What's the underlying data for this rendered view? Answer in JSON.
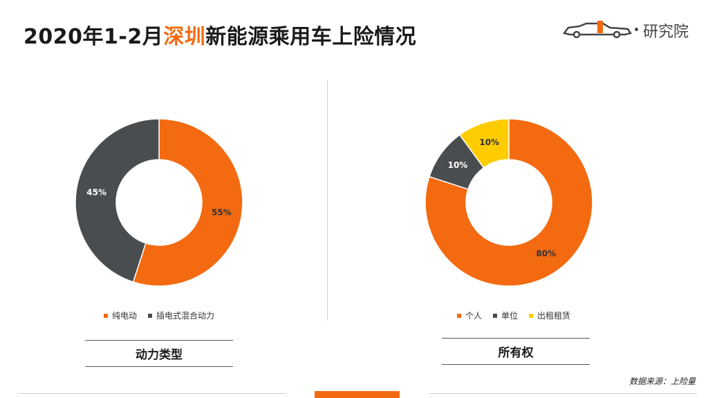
{
  "header": {
    "title_prefix": "2020年1-2月",
    "title_highlight": "深圳",
    "title_suffix": "新能源乘用车上险情况",
    "logo_text": "研究院"
  },
  "colors": {
    "accent": "#f36a10",
    "dark": "#4a4d4f",
    "yellow": "#ffcc00"
  },
  "chart_data": [
    {
      "type": "pie",
      "variant": "donut",
      "caption": "动力类型",
      "labels": [
        "纯电动",
        "插电式混合动力"
      ],
      "values": [
        55,
        45
      ],
      "value_labels": [
        "55%",
        "45%"
      ],
      "colors": [
        "#f36a10",
        "#4a4d4f"
      ],
      "legend_position": "bottom"
    },
    {
      "type": "pie",
      "variant": "donut",
      "caption": "所有权",
      "labels": [
        "个人",
        "单位",
        "出租租赁"
      ],
      "values": [
        80,
        10,
        10
      ],
      "value_labels": [
        "80%",
        "10%",
        "10%"
      ],
      "colors": [
        "#f36a10",
        "#4a4d4f",
        "#ffcc00"
      ],
      "legend_position": "bottom"
    }
  ],
  "source": "数据来源：上险量"
}
